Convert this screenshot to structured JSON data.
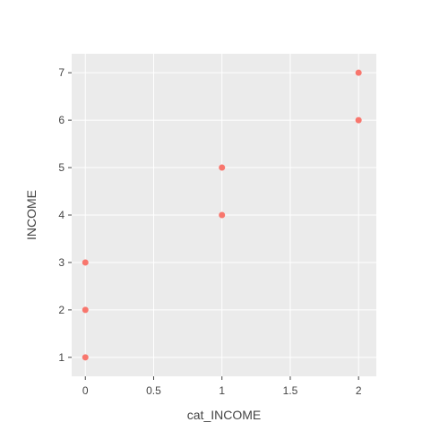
{
  "chart_data": {
    "type": "scatter",
    "xlabel": "cat_INCOME",
    "ylabel": "INCOME",
    "x": [
      0,
      0,
      0,
      1,
      1,
      2,
      2
    ],
    "y": [
      1,
      2,
      3,
      4,
      5,
      6,
      7
    ],
    "xlim": [
      -0.1,
      2.13
    ],
    "ylim": [
      0.6,
      7.4
    ],
    "xticks": [
      0,
      0.5,
      1,
      1.5,
      2
    ],
    "xtick_labels": [
      "0",
      "0.5",
      "1",
      "1.5",
      "2"
    ],
    "yticks": [
      1,
      2,
      3,
      4,
      5,
      6,
      7
    ],
    "ytick_labels": [
      "1",
      "2",
      "3",
      "4",
      "5",
      "6",
      "7"
    ],
    "grid": true,
    "colors": {
      "marker": "#F8766D",
      "panel": "#EBEBEB",
      "grid": "#FFFFFF",
      "text": "#444444"
    }
  }
}
